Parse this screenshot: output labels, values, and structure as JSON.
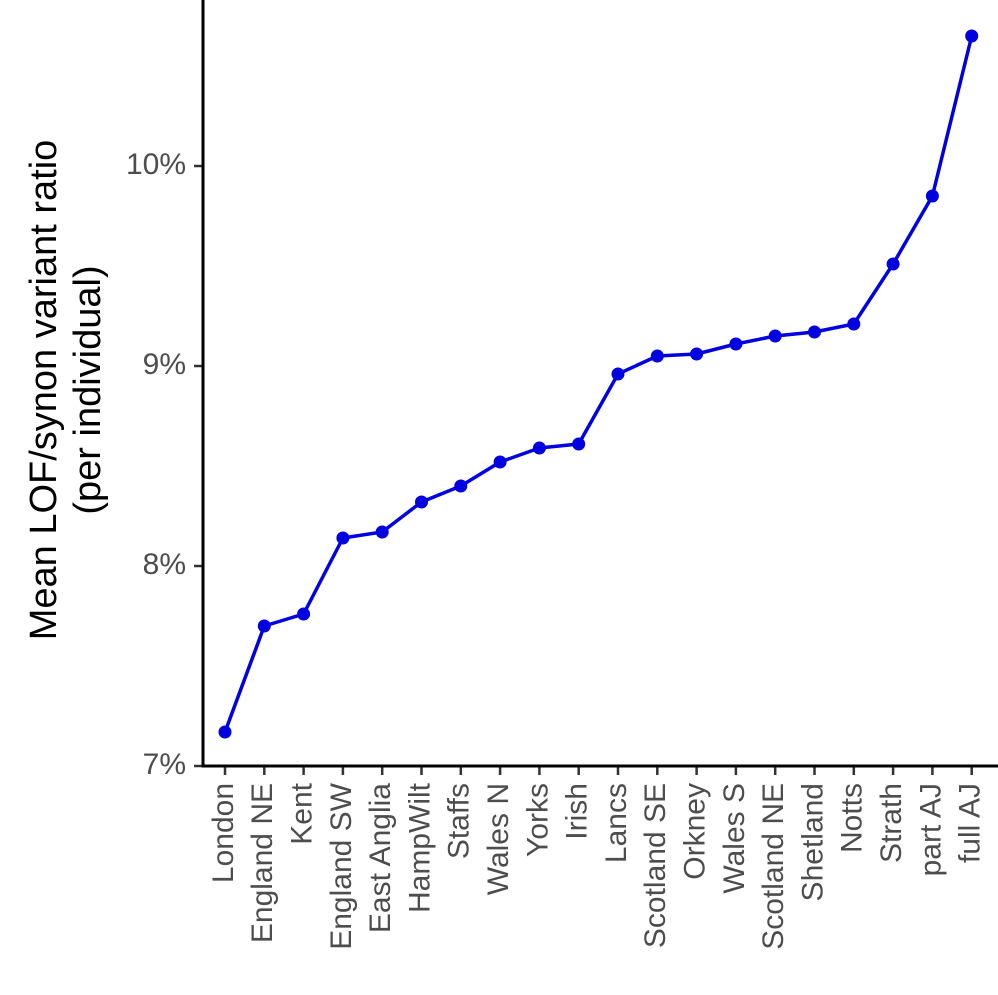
{
  "chart_data": {
    "type": "line",
    "title": "",
    "xlabel": "",
    "ylabel": [
      "Mean LOF/synon variant ratio",
      "(per individual)"
    ],
    "ylim": [
      7.0,
      10.9
    ],
    "yticks": [
      7,
      8,
      9,
      10
    ],
    "ytick_labels": [
      "7%",
      "8%",
      "9%",
      "10%"
    ],
    "categories": [
      "London",
      "England NE",
      "Kent",
      "England SW",
      "East Anglia",
      "HampWilt",
      "Staffs",
      "Wales N",
      "Yorks",
      "Irish",
      "Lancs",
      "Scotland SE",
      "Orkney",
      "Wales S",
      "Scotland NE",
      "Shetland",
      "Notts",
      "Strath",
      "part AJ",
      "full AJ"
    ],
    "values": [
      7.17,
      7.7,
      7.76,
      8.14,
      8.17,
      8.32,
      8.4,
      8.52,
      8.59,
      8.61,
      8.96,
      9.05,
      9.06,
      9.11,
      9.15,
      9.17,
      9.21,
      9.51,
      9.85,
      10.65
    ],
    "units": "%",
    "grid": false,
    "line_color": "#0000e0"
  }
}
